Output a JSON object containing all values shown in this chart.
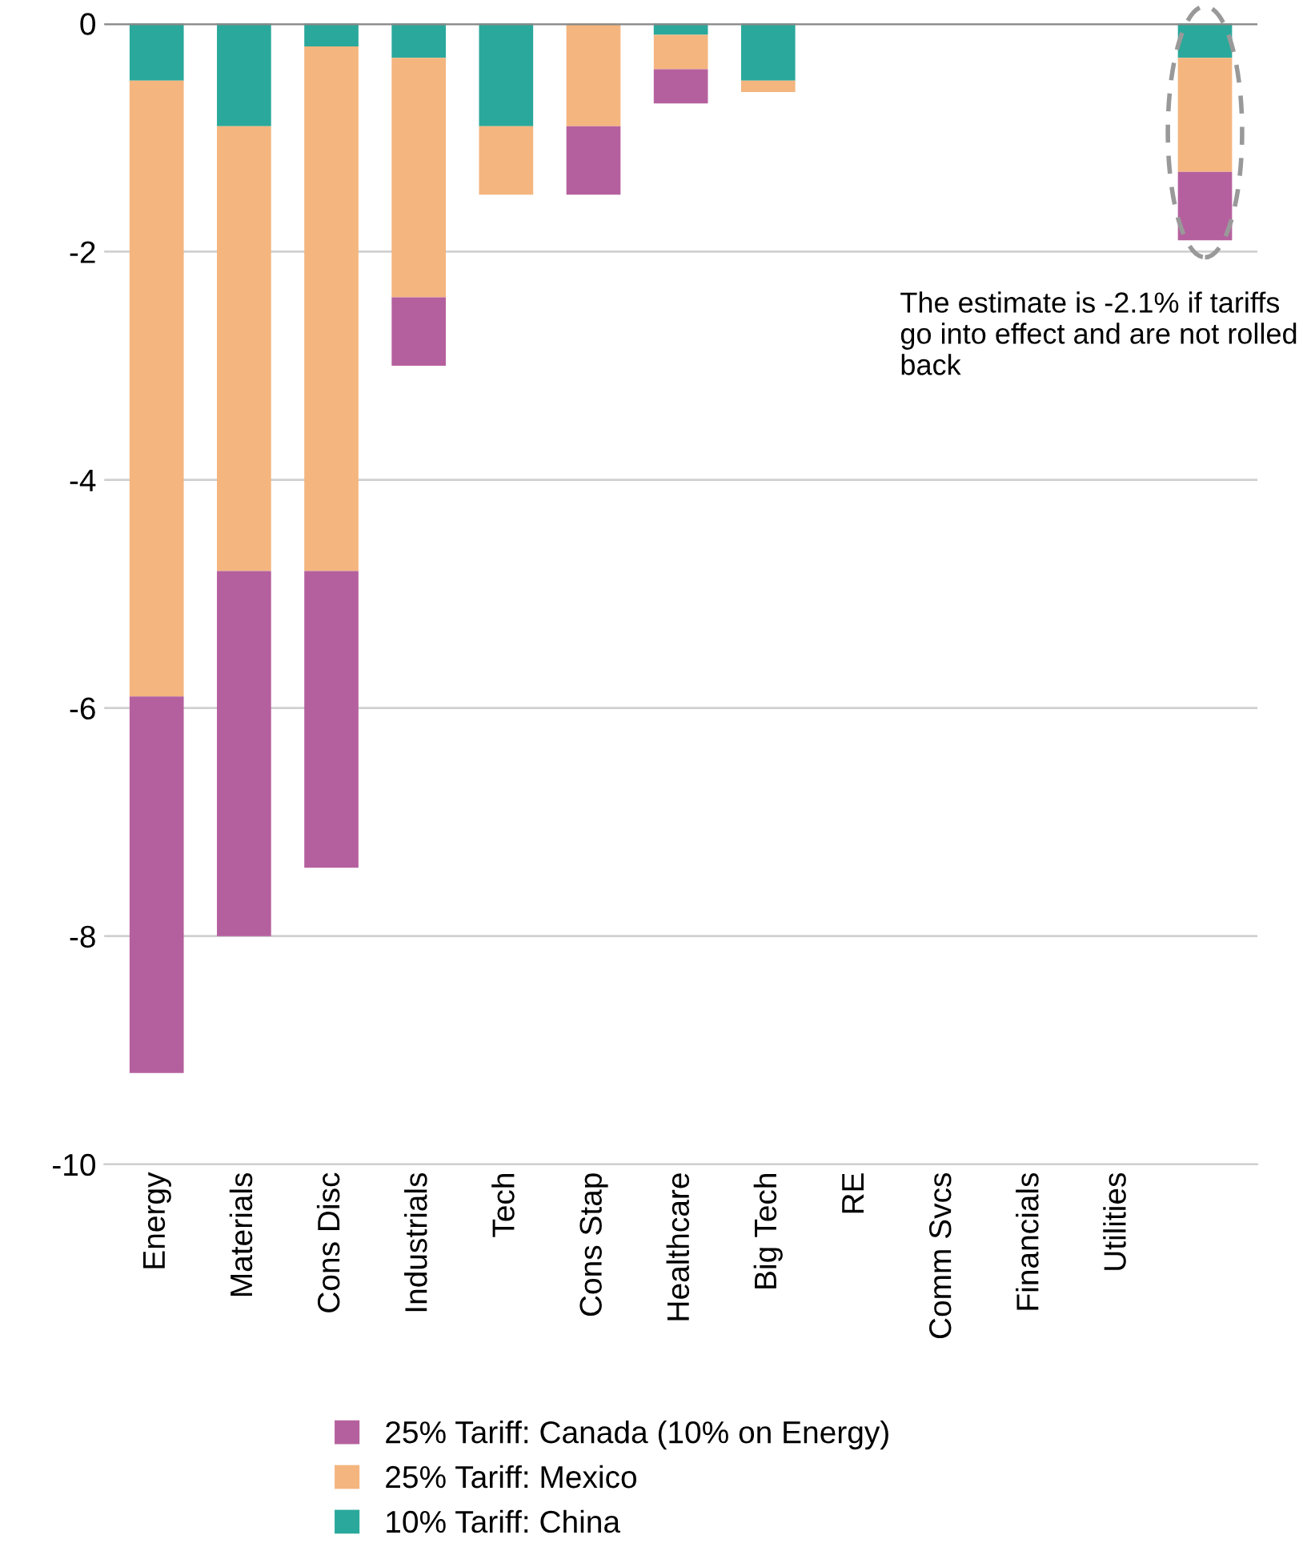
{
  "chart_data": {
    "type": "bar",
    "stacked": true,
    "categories": [
      "Energy",
      "Materials",
      "Cons Disc",
      "Industrials",
      "Tech",
      "Cons Stap",
      "Healthcare",
      "Big Tech",
      "RE",
      "Comm Svcs",
      "Financials",
      "Utilities",
      null
    ],
    "series": [
      {
        "name": "10% Tariff: China",
        "color": "#2aa89b",
        "values": [
          -0.5,
          -0.9,
          -0.2,
          -0.3,
          -0.9,
          0,
          -0.1,
          -0.5,
          0,
          0,
          0,
          0,
          -0.3
        ]
      },
      {
        "name": "25% Tariff: Mexico",
        "color": "#f4b57f",
        "values": [
          -5.4,
          -3.9,
          -4.6,
          -2.1,
          -0.6,
          -0.9,
          -0.3,
          -0.1,
          0,
          0,
          0,
          0,
          -1.0
        ]
      },
      {
        "name": "25% Tariff: Canada (10% on Energy)",
        "color": "#b5609e",
        "values": [
          -3.3,
          -3.2,
          -2.6,
          -0.6,
          0,
          -0.6,
          -0.3,
          0,
          0,
          0,
          0,
          0,
          -0.6
        ]
      }
    ],
    "ylim": [
      -10,
      0
    ],
    "yticks": [
      -10,
      -8,
      -6,
      -4,
      -2,
      0
    ],
    "grid": "y",
    "legend": "bottom",
    "annotations": [
      "The estimate is -2.1% if tariffs go into effect and are not rolled back"
    ]
  }
}
